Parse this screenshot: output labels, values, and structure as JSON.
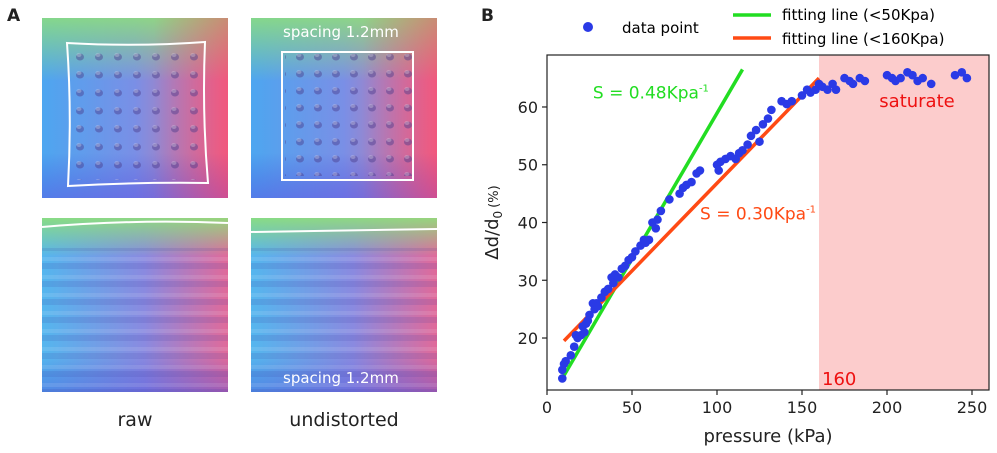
{
  "panel_a": {
    "letter": "A",
    "captions": {
      "raw": "raw",
      "undistorted": "undistorted"
    },
    "spacing_top": "spacing 1.2mm",
    "spacing_bottom": "spacing 1.2mm"
  },
  "panel_b": {
    "letter": "B"
  },
  "colors": {
    "data_point": "#2a3ae6",
    "fit_50": "#22dd22",
    "fit_160": "#ff4a14",
    "saturate_fill": "#fccccc",
    "saturate_text": "#ee1111"
  },
  "chart_data": {
    "type": "scatter",
    "xlabel": "pressure (kPa)",
    "ylabel_main": "Δd/d",
    "ylabel_sub": "0",
    "ylabel_unit": "(%)",
    "xlim": [
      0,
      260
    ],
    "ylim": [
      11,
      69
    ],
    "xticks": [
      0,
      50,
      100,
      150,
      200,
      250
    ],
    "yticks": [
      20,
      30,
      40,
      50,
      60
    ],
    "legend": [
      {
        "label": "data point",
        "kind": "marker"
      },
      {
        "label": "fitting line (<50Kpa)",
        "kind": "line-green"
      },
      {
        "label": "fitting line (<160Kpa)",
        "kind": "line-red"
      }
    ],
    "fits": [
      {
        "name": "fitting line (<50Kpa)",
        "x": [
          8,
          115
        ],
        "y": [
          12.5,
          66.5
        ],
        "label": "S = 0.48Kpa",
        "label_sup": "-1"
      },
      {
        "name": "fitting line (<160Kpa)",
        "x": [
          10,
          160
        ],
        "y": [
          19.5,
          65.0
        ],
        "label": "S = 0.30Kpa",
        "label_sup": "-1"
      }
    ],
    "saturation": {
      "x_start": 160,
      "label": "saturate",
      "marker_label": "160"
    },
    "points": {
      "x": [
        9,
        9,
        10,
        11,
        14,
        16,
        17,
        18,
        20,
        21,
        22,
        23,
        24,
        25,
        27,
        28,
        29,
        30,
        32,
        34,
        36,
        38,
        39,
        40,
        42,
        44,
        46,
        48,
        50,
        52,
        55,
        57,
        58,
        60,
        62,
        64,
        65,
        67,
        72,
        78,
        80,
        82,
        85,
        88,
        90,
        100,
        101,
        102,
        105,
        108,
        111,
        113,
        115,
        118,
        120,
        123,
        125,
        127,
        130,
        132,
        138,
        141,
        144,
        150,
        153,
        155,
        158,
        160,
        162,
        165,
        168,
        170,
        175,
        178,
        180,
        184,
        187,
        200,
        203,
        205,
        208,
        212,
        215,
        218,
        221,
        226,
        240,
        244,
        247
      ],
      "y": [
        13,
        14.5,
        15.5,
        16,
        17,
        18.5,
        20.5,
        20,
        20.5,
        22,
        21,
        22.5,
        23,
        24,
        26,
        25,
        26,
        25.5,
        27,
        28,
        28.5,
        30.5,
        29.5,
        31,
        30.5,
        32,
        32.5,
        33.5,
        34,
        35,
        36,
        37,
        36.5,
        37,
        40,
        39,
        40.5,
        42,
        44,
        45,
        46,
        46.5,
        47,
        48.5,
        49,
        50,
        49,
        50.5,
        51,
        51.5,
        51,
        52,
        52.5,
        53.5,
        55,
        56,
        54,
        57,
        58,
        59.5,
        61,
        60.5,
        61,
        62,
        63,
        62.5,
        63,
        64,
        63.5,
        63,
        64,
        63,
        65,
        64.5,
        64,
        65,
        64.5,
        65.5,
        65,
        64.5,
        65,
        66,
        65.5,
        64.5,
        65,
        64,
        65.5,
        66,
        65
      ]
    }
  }
}
